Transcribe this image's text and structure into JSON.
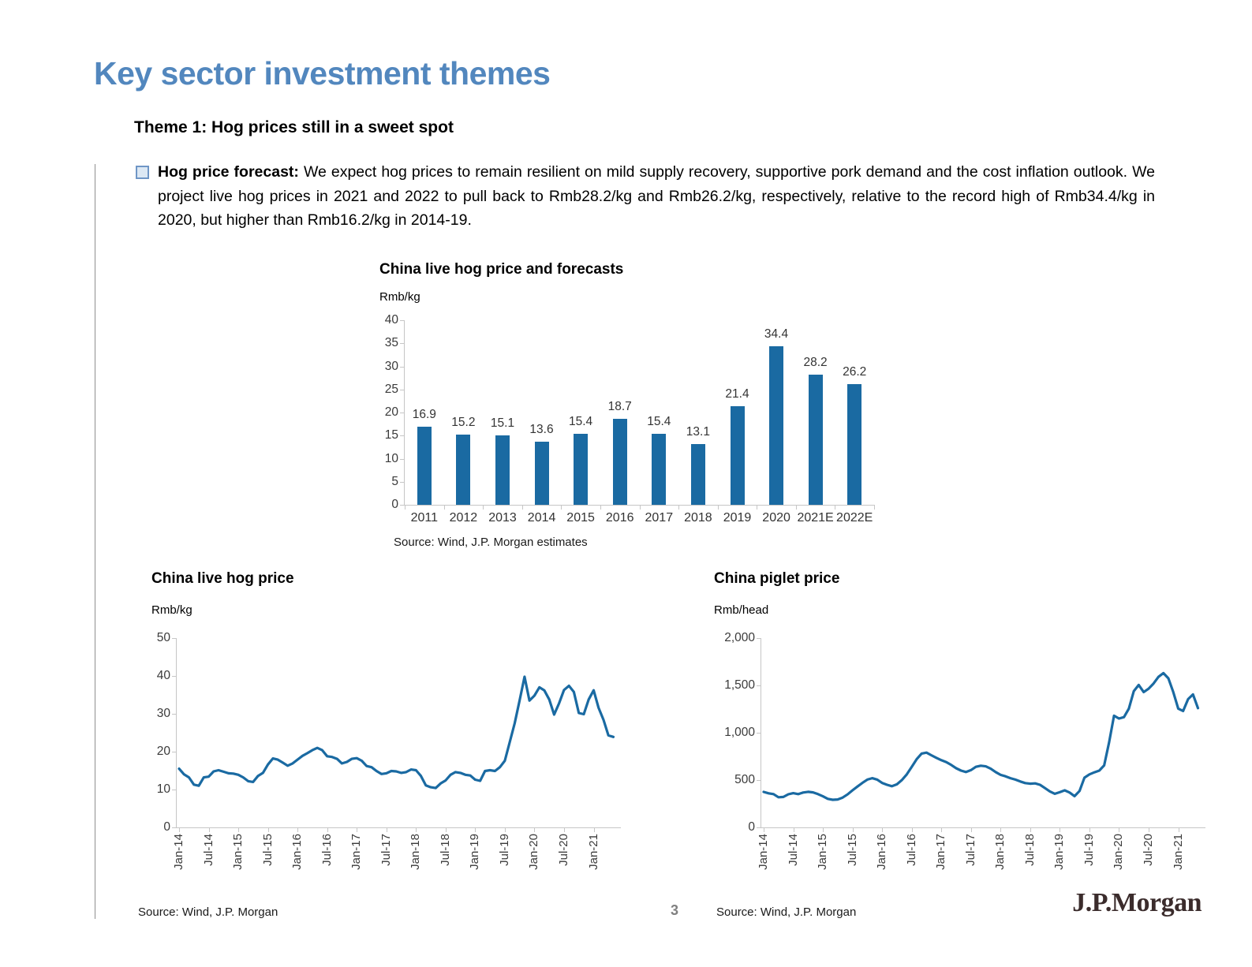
{
  "page": {
    "title": "Key sector investment themes",
    "theme_heading": "Theme 1: Hog prices still in a sweet spot",
    "bullet_lead": "Hog price forecast:",
    "bullet_text": " We expect hog prices to remain resilient on mild supply recovery, supportive pork demand and the cost inflation outlook. We project live hog prices in 2021 and 2022 to pull back to Rmb28.2/kg and Rmb26.2/kg, respectively, relative to the record high of Rmb34.4/kg in 2020, but higher than Rmb16.2/kg in 2014-19.",
    "page_number": "3",
    "logo_text": "J.P.Morgan"
  },
  "colors": {
    "accent_blue": "#1A6AA2",
    "title_blue": "#5287BE",
    "logo_brown": "#3b2c2c"
  },
  "chart_data": [
    {
      "type": "bar",
      "title": "China live hog price and forecasts",
      "unit": "Rmb/kg",
      "source": "Source: Wind, J.P. Morgan estimates",
      "categories": [
        "2011",
        "2012",
        "2013",
        "2014",
        "2015",
        "2016",
        "2017",
        "2018",
        "2019",
        "2020",
        "2021E",
        "2022E"
      ],
      "values": [
        16.9,
        15.2,
        15.1,
        13.6,
        15.4,
        18.7,
        15.4,
        13.1,
        21.4,
        34.4,
        28.2,
        26.2
      ],
      "ylim": [
        0,
        40
      ],
      "ytick_values": [
        0,
        5,
        10,
        15,
        20,
        25,
        30,
        35,
        40
      ],
      "ytick_labels": [
        "0",
        "5",
        "10",
        "15",
        "20",
        "25",
        "30",
        "35",
        "40"
      ],
      "grid": false,
      "legend": "none"
    },
    {
      "type": "line",
      "title": "China live hog price",
      "unit": "Rmb/kg",
      "source": "Source: Wind, J.P. Morgan",
      "ylim": [
        0,
        50
      ],
      "ytick_values": [
        0,
        10,
        20,
        30,
        40,
        50
      ],
      "ytick_labels": [
        "0",
        "10",
        "20",
        "30",
        "40",
        "50"
      ],
      "x_start": "Jan-14",
      "x_frequency": "monthly",
      "x_tick_interval_months": 6,
      "xticklabels": [
        "Jan-14",
        "Jul-14",
        "Jan-15",
        "Jul-15",
        "Jan-16",
        "Jul-16",
        "Jan-17",
        "Jul-17",
        "Jan-18",
        "Jul-18",
        "Jan-19",
        "Jul-19",
        "Jan-20",
        "Jul-20",
        "Jan-21"
      ],
      "values": [
        15.5,
        14.0,
        13.2,
        11.3,
        11.0,
        13.2,
        13.4,
        14.8,
        15.1,
        14.7,
        14.3,
        14.2,
        13.9,
        13.2,
        12.2,
        12.0,
        13.6,
        14.4,
        16.6,
        18.2,
        17.9,
        17.1,
        16.3,
        16.9,
        17.9,
        18.9,
        19.6,
        20.4,
        21.0,
        20.4,
        18.8,
        18.6,
        18.1,
        16.9,
        17.3,
        18.1,
        18.3,
        17.6,
        16.2,
        15.9,
        14.9,
        14.1,
        14.3,
        14.9,
        14.8,
        14.4,
        14.6,
        15.3,
        15.1,
        13.6,
        11.1,
        10.6,
        10.4,
        11.6,
        12.4,
        13.9,
        14.6,
        14.4,
        13.9,
        13.7,
        12.6,
        12.3,
        14.9,
        15.1,
        14.9,
        15.9,
        17.6,
        22.5,
        27.5,
        33.5,
        39.8,
        33.5,
        34.8,
        37.0,
        36.2,
        33.8,
        29.8,
        32.8,
        36.3,
        37.4,
        35.8,
        30.2,
        29.9,
        33.8,
        36.2,
        31.6,
        28.4,
        24.3,
        23.9
      ],
      "grid": false,
      "legend": "none"
    },
    {
      "type": "line",
      "title": "China piglet price",
      "unit": "Rmb/head",
      "source": "Source: Wind, J.P. Morgan",
      "ylim": [
        0,
        2000
      ],
      "ytick_values": [
        0,
        500,
        1000,
        1500,
        2000
      ],
      "ytick_labels": [
        "0",
        "500",
        "1,000",
        "1,500",
        "2,000"
      ],
      "x_start": "Jan-14",
      "x_frequency": "monthly",
      "x_tick_interval_months": 6,
      "xticklabels": [
        "Jan-14",
        "Jul-14",
        "Jan-15",
        "Jul-15",
        "Jan-16",
        "Jul-16",
        "Jan-17",
        "Jul-17",
        "Jan-18",
        "Jul-18",
        "Jan-19",
        "Jul-19",
        "Jan-20",
        "Jul-20",
        "Jan-21"
      ],
      "values": [
        375,
        360,
        352,
        318,
        322,
        350,
        362,
        352,
        368,
        376,
        370,
        352,
        328,
        302,
        292,
        295,
        315,
        348,
        392,
        432,
        470,
        505,
        520,
        505,
        470,
        450,
        435,
        455,
        500,
        560,
        640,
        720,
        780,
        790,
        762,
        735,
        710,
        690,
        660,
        625,
        600,
        585,
        605,
        640,
        652,
        645,
        620,
        585,
        555,
        540,
        520,
        505,
        485,
        468,
        462,
        465,
        450,
        415,
        380,
        355,
        372,
        392,
        368,
        330,
        385,
        525,
        560,
        582,
        600,
        655,
        900,
        1180,
        1150,
        1165,
        1255,
        1440,
        1505,
        1430,
        1465,
        1520,
        1590,
        1630,
        1575,
        1430,
        1255,
        1230,
        1355,
        1405,
        1260
      ],
      "grid": false,
      "legend": "none"
    }
  ]
}
